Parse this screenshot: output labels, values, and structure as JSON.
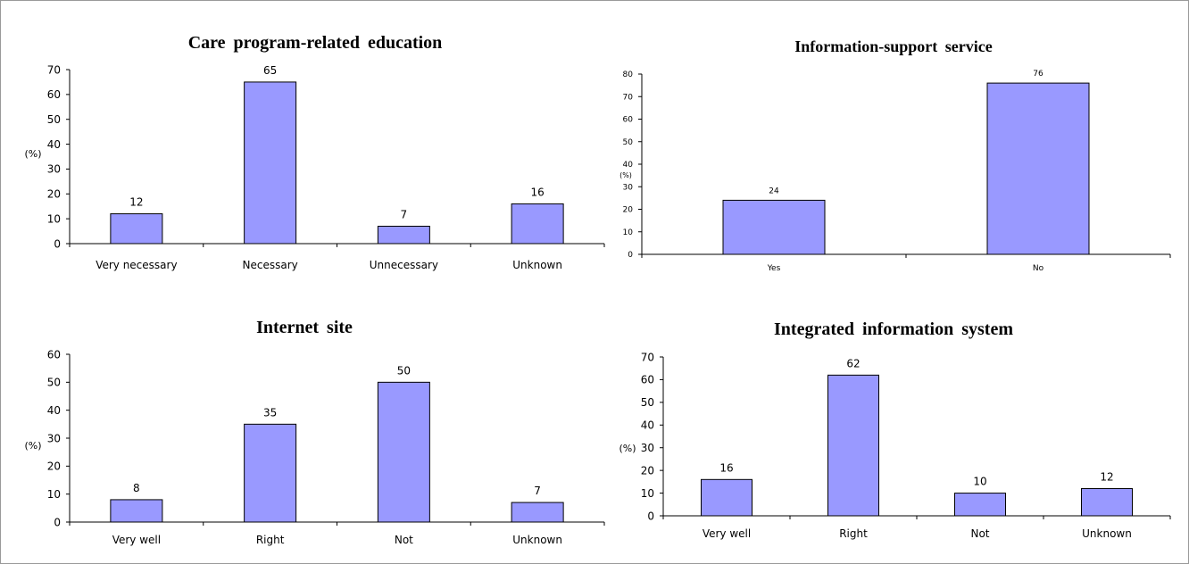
{
  "chart_data": [
    {
      "type": "bar",
      "title": "Care program-related education",
      "ylabel": "(%)",
      "categories": [
        "Very necessary",
        "Necessary",
        "Unnecessary",
        "Unknown"
      ],
      "values": [
        12,
        65,
        7,
        16
      ],
      "ylim": [
        0,
        70
      ],
      "yticks": [
        0,
        10,
        20,
        30,
        40,
        50,
        60,
        70
      ],
      "grid": false,
      "bar_color": "#9999ff"
    },
    {
      "type": "bar",
      "title": "Information-support service",
      "ylabel": "(%)",
      "categories": [
        "Yes",
        "No"
      ],
      "values": [
        24,
        76
      ],
      "ylim": [
        0,
        80
      ],
      "yticks": [
        0,
        10,
        20,
        30,
        40,
        50,
        60,
        70,
        80
      ],
      "grid": false,
      "bar_color": "#9999ff"
    },
    {
      "type": "bar",
      "title": "Internet site",
      "ylabel": "(%)",
      "categories": [
        "Very well",
        "Right",
        "Not",
        "Unknown"
      ],
      "values": [
        8,
        35,
        50,
        7
      ],
      "ylim": [
        0,
        60
      ],
      "yticks": [
        0,
        10,
        20,
        30,
        40,
        50,
        60
      ],
      "grid": false,
      "bar_color": "#9999ff"
    },
    {
      "type": "bar",
      "title": "Integrated information system",
      "ylabel": "(%)",
      "categories": [
        "Very well",
        "Right",
        "Not",
        "Unknown"
      ],
      "values": [
        16,
        62,
        10,
        12
      ],
      "ylim": [
        0,
        70
      ],
      "yticks": [
        0,
        10,
        20,
        30,
        40,
        50,
        60,
        70
      ],
      "grid": false,
      "bar_color": "#9999ff"
    }
  ]
}
